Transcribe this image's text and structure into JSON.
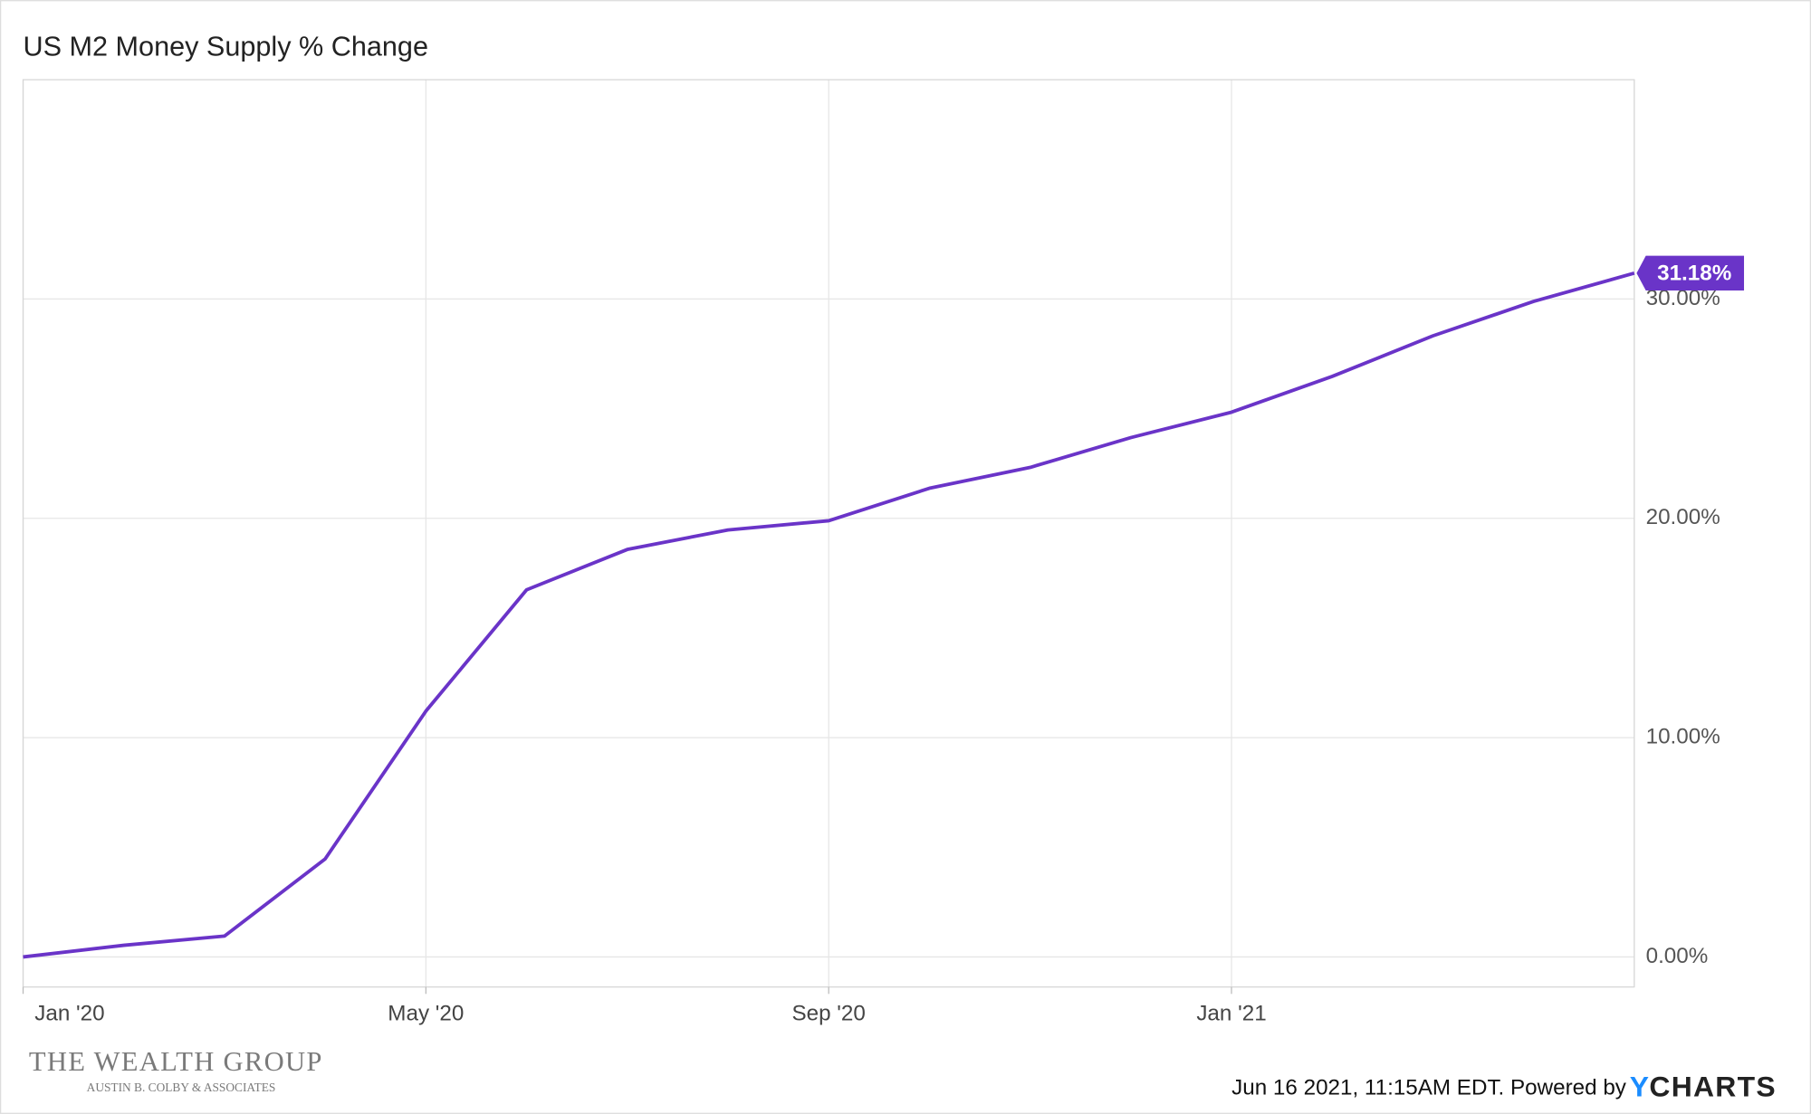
{
  "chart_data": {
    "type": "line",
    "title": "US M2 Money Supply % Change",
    "x": [
      "2020-01",
      "2020-02",
      "2020-03",
      "2020-04",
      "2020-05",
      "2020-06",
      "2020-07",
      "2020-08",
      "2020-09",
      "2020-10",
      "2020-11",
      "2020-12",
      "2021-01",
      "2021-02",
      "2021-03",
      "2021-04",
      "2021-05"
    ],
    "series": [
      {
        "name": "US M2 Money Supply % Change",
        "color": "#6a34c8",
        "values": [
          0,
          0.53,
          0.95,
          4.47,
          11.21,
          16.74,
          18.58,
          19.47,
          19.89,
          21.37,
          22.32,
          23.68,
          24.84,
          26.47,
          28.32,
          29.89,
          31.18
        ],
        "value_labels": [
          null,
          null,
          null,
          null,
          null,
          null,
          null,
          null,
          null,
          null,
          null,
          null,
          null,
          null,
          null,
          null,
          "31.18%"
        ]
      }
    ],
    "xlim": [
      "2020-01",
      "2021-05"
    ],
    "xticks": [
      {
        "value": "2020-01",
        "label": "Jan '20"
      },
      {
        "value": "2020-05",
        "label": "May '20"
      },
      {
        "value": "2020-09",
        "label": "Sep '20"
      },
      {
        "value": "2021-01",
        "label": "Jan '21"
      }
    ],
    "ylim": [
      -1.37,
      40
    ],
    "yticks": [
      {
        "value": 0,
        "label": "0.00%"
      },
      {
        "value": 10,
        "label": "10.00%"
      },
      {
        "value": 20,
        "label": "20.00%"
      },
      {
        "value": 30,
        "label": "30.00%"
      }
    ],
    "grid": true,
    "footer": "Jun 16 2021, 11:15AM EDT. Powered by",
    "logo": [
      "Y",
      "CHARTS"
    ],
    "branding": {
      "name": "THE WEALTH GROUP",
      "subtitle": "AUSTIN B. COLBY & ASSOCIATES"
    }
  }
}
